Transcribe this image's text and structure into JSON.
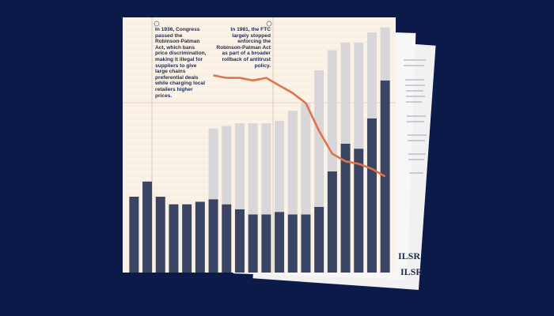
{
  "logos": [
    "ILSR",
    "ILSR"
  ],
  "chart_data": {
    "type": "bar",
    "annotations": [
      "In 1936, Congress passed the Robinson-Patman Act, which bans price discrimination, making it illegal for suppliers to give large chains preferential deals while charging local retailers higher prices.",
      "In 1981, the FTC largely stopped enforcing the Robinson-Patman Act as part of a broader rollback of antitrust policy."
    ],
    "categories": [
      null,
      null,
      null,
      null,
      null,
      null,
      null,
      null,
      null,
      null,
      null,
      null,
      null,
      null,
      null,
      null,
      null,
      null,
      null,
      null
    ],
    "ylim": [
      0,
      100
    ],
    "series": [
      {
        "color": "#3a4563",
        "values": [
          30,
          36,
          30,
          27,
          27,
          28,
          29,
          27,
          25,
          23,
          23,
          24,
          23,
          23,
          26,
          40,
          51,
          49,
          61,
          76
        ]
      },
      {
        "color": "#d8d6d8",
        "values": [
          null,
          null,
          null,
          null,
          null,
          null,
          28,
          31,
          34,
          36,
          36,
          36,
          41,
          44,
          54,
          48,
          40,
          42,
          34,
          21
        ]
      }
    ],
    "line": {
      "color": "#e0734a",
      "values": [
        null,
        null,
        null,
        null,
        null,
        null,
        78,
        77,
        77,
        76,
        77,
        74,
        71,
        67,
        56,
        47,
        44,
        43,
        41,
        38
      ]
    }
  }
}
